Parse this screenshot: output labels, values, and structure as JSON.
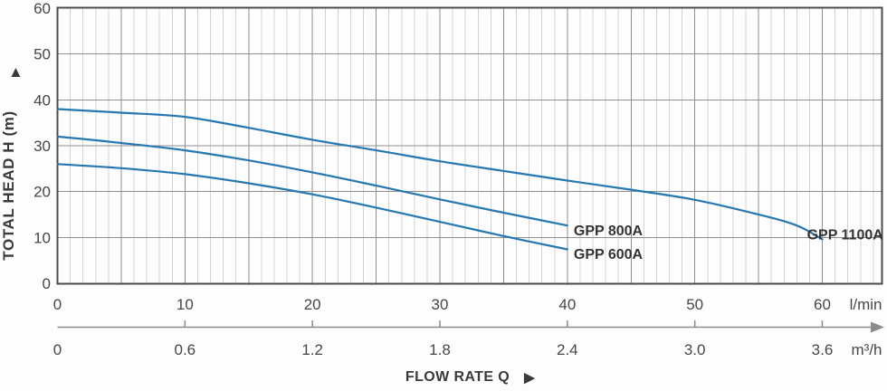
{
  "chart_data": {
    "type": "line",
    "title": "",
    "ylabel": "TOTAL HEAD H (m)",
    "xlabel": "FLOW RATE Q",
    "y_axis": {
      "min": 0,
      "max": 60,
      "ticks": [
        0,
        10,
        20,
        30,
        40,
        50,
        60
      ],
      "grid_step": 10
    },
    "x_axis_primary": {
      "unit": "l/min",
      "min": 0,
      "max_labeled": 60,
      "ticks": [
        0,
        10,
        20,
        30,
        40,
        50,
        60
      ],
      "minor_step": 1,
      "major_step": 5,
      "plot_extent": 64.7
    },
    "x_axis_secondary": {
      "unit": "m³/h",
      "tick_labels": [
        "0",
        "0.6",
        "1.2",
        "1.8",
        "2.4",
        "3.0",
        "3.6"
      ],
      "tick_positions_lmin": [
        0,
        10,
        20,
        30,
        40,
        50,
        60
      ]
    },
    "grid": {
      "vertical_minor_every_lmin": 1,
      "vertical_major_every_lmin": 5,
      "horizontal_every_m": 10
    },
    "series": [
      {
        "name": "GPP 1100A",
        "x": [
          0,
          5,
          10,
          15,
          20,
          25,
          30,
          35,
          40,
          45,
          50,
          55,
          58,
          60
        ],
        "y": [
          38,
          37.2,
          36.3,
          33.9,
          31.3,
          29,
          26.6,
          24.5,
          22.4,
          20.4,
          18.2,
          15,
          12.6,
          9.6
        ],
        "label_at": {
          "flow": 58.8,
          "head": 9.6
        }
      },
      {
        "name": "GPP 800A",
        "x": [
          0,
          5,
          10,
          15,
          20,
          25,
          30,
          35,
          40
        ],
        "y": [
          32,
          30.6,
          29,
          26.8,
          24.2,
          21.3,
          18.3,
          15.4,
          12.6
        ],
        "label_at": {
          "flow": 40.5,
          "head": 10.5
        }
      },
      {
        "name": "GPP 600A",
        "x": [
          0,
          5,
          10,
          15,
          20,
          25,
          30,
          35,
          40
        ],
        "y": [
          26,
          25.1,
          23.8,
          21.8,
          19.4,
          16.5,
          13.4,
          10.3,
          7.4
        ],
        "label_at": {
          "flow": 40.5,
          "head": 5.3
        }
      }
    ],
    "colors": {
      "curve": "#2578b0",
      "grid_minor": "#d2d2d2",
      "grid_major": "#8f8f8f",
      "plot_border": "#4a4a4a",
      "tick_text": "#474747",
      "label_text": "#333333",
      "secondary_axis": "#8c8c8c"
    },
    "legend_position": "inline-labels"
  },
  "icons": {
    "up_arrow": "▲",
    "right_arrow": "▶"
  }
}
